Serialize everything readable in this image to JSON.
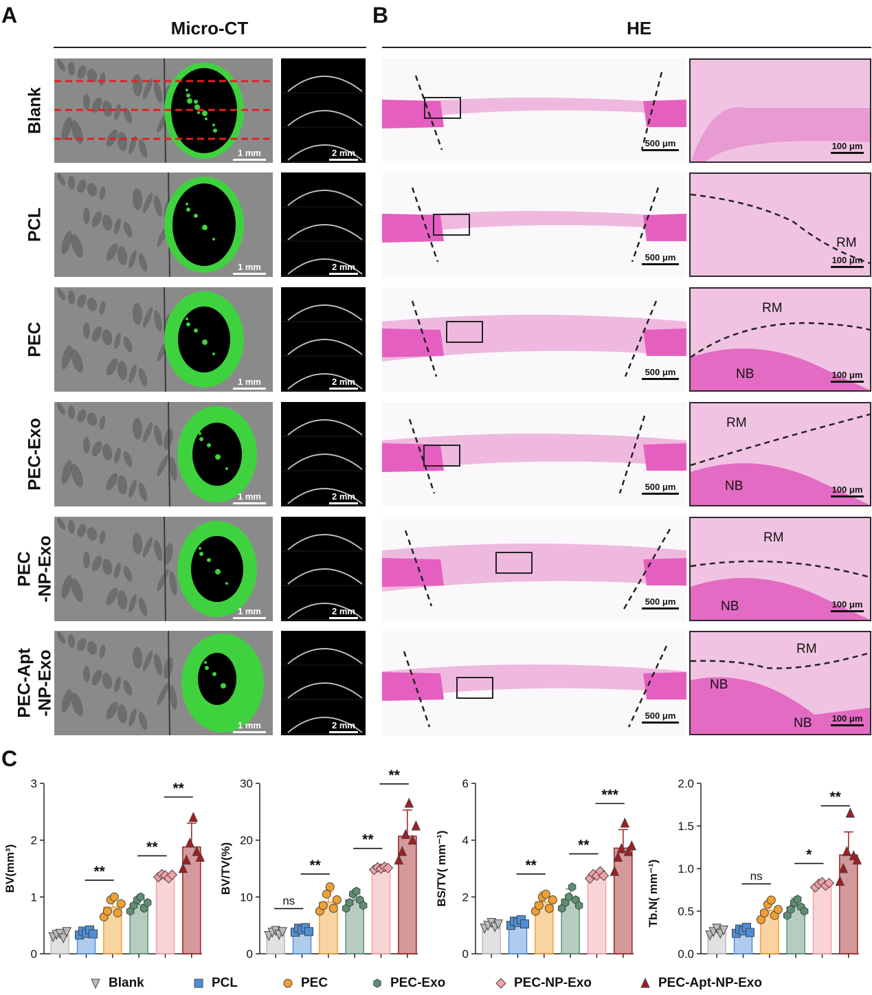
{
  "panel_a": {
    "letter": "A",
    "title": "Micro-CT",
    "scale_ct": "1 mm",
    "scale_slice": "2 mm"
  },
  "panel_b": {
    "letter": "B",
    "title": "HE",
    "scale_he": "500 μm",
    "scale_zoom": "100 μm"
  },
  "panel_c": {
    "letter": "C"
  },
  "groups": [
    {
      "label": "Blank",
      "label2": "",
      "regions": []
    },
    {
      "label": "PCL",
      "label2": "",
      "regions": [
        "RM"
      ]
    },
    {
      "label": "PEC",
      "label2": "",
      "regions": [
        "RM",
        "NB"
      ]
    },
    {
      "label": "PEC-Exo",
      "label2": "",
      "regions": [
        "RM",
        "NB"
      ]
    },
    {
      "label": "PEC",
      "label2": "-NP-Exo",
      "regions": [
        "RM",
        "NB"
      ]
    },
    {
      "label": "PEC-Apt",
      "label2": "-NP-Exo",
      "regions": [
        "RM",
        "NB",
        "NB"
      ]
    }
  ],
  "legend": [
    {
      "name": "Blank",
      "marker": "triangle-down",
      "color": "#bdbdbd"
    },
    {
      "name": "PCL",
      "marker": "square",
      "color": "#4d8fd6"
    },
    {
      "name": "PEC",
      "marker": "circle",
      "color": "#f0a030"
    },
    {
      "name": "PEC-Exo",
      "marker": "hexagon",
      "color": "#5d8f72"
    },
    {
      "name": "PEC-NP-Exo",
      "marker": "diamond",
      "color": "#f2a0a6"
    },
    {
      "name": "PEC-Apt-NP-Exo",
      "marker": "triangle-up",
      "color": "#a01e22"
    }
  ],
  "chart_data": [
    {
      "type": "bar",
      "ylabel": "BV(mm³)",
      "ylim": [
        0,
        3
      ],
      "yticks": [
        "0",
        "1",
        "2",
        "3"
      ],
      "categories": [
        "Blank",
        "PCL",
        "PEC",
        "PEC-Exo",
        "PEC-NP-Exo",
        "PEC-Apt-NP-Exo"
      ],
      "values": [
        0.33,
        0.37,
        0.82,
        0.87,
        1.37,
        1.88
      ],
      "errors": [
        0.05,
        0.06,
        0.16,
        0.12,
        0.04,
        0.42
      ],
      "points": [
        [
          0.3,
          0.34,
          0.36,
          0.28,
          0.39
        ],
        [
          0.33,
          0.4,
          0.36,
          0.42,
          0.35
        ],
        [
          0.65,
          0.75,
          0.95,
          1.0,
          0.72,
          0.88
        ],
        [
          0.75,
          0.85,
          0.95,
          1.0,
          0.8,
          0.9
        ],
        [
          1.35,
          1.4,
          1.38,
          1.33,
          1.39
        ],
        [
          1.5,
          1.65,
          1.95,
          2.4,
          1.8,
          1.7
        ]
      ],
      "significance": [
        {
          "from": 1,
          "to": 2,
          "label": "**"
        },
        {
          "from": 3,
          "to": 4,
          "label": "**"
        },
        {
          "from": 4,
          "to": 5,
          "label": "**"
        }
      ]
    },
    {
      "type": "bar",
      "ylabel": "BV/TV(%)",
      "ylim": [
        0,
        30
      ],
      "yticks": [
        "0",
        "10",
        "20",
        "30"
      ],
      "categories": [
        "Blank",
        "PCL",
        "PEC",
        "PEC-Exo",
        "PEC-NP-Exo",
        "PEC-Apt-NP-Exo"
      ],
      "values": [
        3.7,
        4.2,
        9.1,
        9.5,
        15.1,
        20.7
      ],
      "errors": [
        0.5,
        0.6,
        1.8,
        1.5,
        0.3,
        4.6
      ],
      "points": [
        [
          3.2,
          3.8,
          4.1,
          3.4,
          3.9
        ],
        [
          3.8,
          4.5,
          4.2,
          4.6,
          3.9
        ],
        [
          7.5,
          8.5,
          10.5,
          11.8,
          8.0,
          9.5
        ],
        [
          8.0,
          9.0,
          10.5,
          11.0,
          9.5,
          8.5
        ],
        [
          14.8,
          15.2,
          15.0,
          15.3,
          15.1
        ],
        [
          16.5,
          18.0,
          21.0,
          26.5,
          20.0,
          22.5
        ]
      ],
      "significance": [
        {
          "from": 0,
          "to": 1,
          "label": "ns"
        },
        {
          "from": 1,
          "to": 2,
          "label": "**"
        },
        {
          "from": 3,
          "to": 4,
          "label": "**"
        },
        {
          "from": 4,
          "to": 5,
          "label": "**"
        }
      ]
    },
    {
      "type": "bar",
      "ylabel": "BS/TV( mm⁻¹)",
      "ylim": [
        0,
        6
      ],
      "yticks": [
        "0",
        "2",
        "4",
        "6"
      ],
      "categories": [
        "Blank",
        "PCL",
        "PEC",
        "PEC-Exo",
        "PEC-NP-Exo",
        "PEC-Apt-NP-Exo"
      ],
      "values": [
        1.0,
        1.08,
        1.83,
        1.93,
        2.77,
        3.72
      ],
      "errors": [
        0.12,
        0.15,
        0.35,
        0.35,
        0.12,
        0.65
      ],
      "points": [
        [
          0.9,
          1.0,
          1.1,
          0.95,
          1.05
        ],
        [
          1.0,
          1.15,
          1.1,
          1.2,
          1.05
        ],
        [
          1.5,
          1.7,
          2.0,
          2.1,
          1.6,
          1.9
        ],
        [
          1.6,
          1.8,
          2.0,
          2.35,
          1.9,
          1.7
        ],
        [
          2.65,
          2.8,
          2.75,
          2.9,
          2.75
        ],
        [
          2.9,
          3.4,
          3.7,
          4.6,
          3.6,
          3.8
        ]
      ],
      "significance": [
        {
          "from": 1,
          "to": 2,
          "label": "**"
        },
        {
          "from": 3,
          "to": 4,
          "label": "**"
        },
        {
          "from": 4,
          "to": 5,
          "label": "***"
        }
      ]
    },
    {
      "type": "bar",
      "ylabel": "Tb.N( mm⁻¹)",
      "ylim": [
        0,
        2.0
      ],
      "yticks": [
        "0.0",
        "0.5",
        "1.0",
        "1.5",
        "2.0"
      ],
      "categories": [
        "Blank",
        "PCL",
        "PEC",
        "PEC-Exo",
        "PEC-NP-Exo",
        "PEC-Apt-NP-Exo"
      ],
      "values": [
        0.26,
        0.27,
        0.51,
        0.55,
        0.81,
        1.16
      ],
      "errors": [
        0.04,
        0.04,
        0.1,
        0.1,
        0.04,
        0.27
      ],
      "points": [
        [
          0.22,
          0.26,
          0.3,
          0.24,
          0.28
        ],
        [
          0.24,
          0.29,
          0.27,
          0.31,
          0.25
        ],
        [
          0.4,
          0.48,
          0.58,
          0.63,
          0.45,
          0.52
        ],
        [
          0.45,
          0.52,
          0.6,
          0.64,
          0.55,
          0.5
        ],
        [
          0.78,
          0.82,
          0.84,
          0.8,
          0.83
        ],
        [
          0.85,
          1.0,
          1.2,
          1.65,
          1.15,
          1.1
        ]
      ],
      "significance": [
        {
          "from": 1,
          "to": 2,
          "label": "ns"
        },
        {
          "from": 3,
          "to": 4,
          "label": "*"
        },
        {
          "from": 4,
          "to": 5,
          "label": "**"
        }
      ]
    }
  ]
}
